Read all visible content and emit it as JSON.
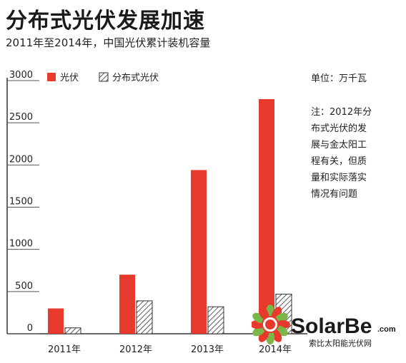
{
  "title": "分布式光伏发展加速",
  "subtitle": "2011年至2014年，中国光伏累计装机容量",
  "unit_label": "单位：万千瓦",
  "note": "注：2012年分\n布式光伏的发\n展与金太阳工\n程有关，但质\n量和实际落实\n情况有问题",
  "watermark": {
    "brand": "SolarBe",
    "domain": ".com",
    "tagline": "索比太阳能光伏网"
  },
  "colors": {
    "solar": "#e8392d",
    "distributed_fill": "#ffffff",
    "distributed_hatch": "#333333",
    "axis": "#333333"
  },
  "chart_data": {
    "type": "bar",
    "categories": [
      "2011年",
      "2012年",
      "2013年",
      "2014年"
    ],
    "series": [
      {
        "name": "光伏",
        "values": [
          300,
          700,
          1940,
          2780
        ]
      },
      {
        "name": "分布式光伏",
        "values": [
          70,
          390,
          320,
          470
        ]
      }
    ],
    "ylim": [
      0,
      3000
    ],
    "yticks": [
      0,
      500,
      1000,
      1500,
      2000,
      2500,
      3000
    ],
    "legend": "top-left",
    "grid": false
  }
}
